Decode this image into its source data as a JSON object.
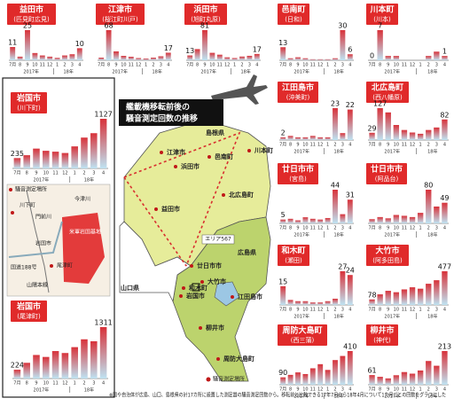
{
  "chart_data": [
    {
      "type": "bar",
      "title": "益田市",
      "subtitle": "(匹見町広見)",
      "categories": [
        "7月",
        "8",
        "9",
        "10",
        "11",
        "12",
        "1",
        "2",
        "3",
        "4"
      ],
      "x_groups": [
        "2017年",
        "18年"
      ],
      "values": [
        11,
        3,
        25,
        6,
        4,
        3,
        2,
        4,
        5,
        10
      ],
      "value_labels": [
        "11",
        null,
        "25",
        null,
        null,
        null,
        null,
        null,
        null,
        "10"
      ]
    },
    {
      "type": "bar",
      "title": "江津市",
      "subtitle": "(桜江町川戸)",
      "categories": [
        "7月",
        "8",
        "9",
        "10",
        "11",
        "12",
        "1",
        "2",
        "3",
        "4"
      ],
      "x_groups": [
        "2017年",
        "18年"
      ],
      "values": [
        6,
        68,
        20,
        10,
        8,
        5,
        4,
        6,
        9,
        17
      ],
      "value_labels": [
        null,
        "68",
        null,
        null,
        null,
        null,
        null,
        null,
        null,
        "17"
      ]
    },
    {
      "type": "bar",
      "title": "浜田市",
      "subtitle": "(旭町丸原)",
      "categories": [
        "7月",
        "8",
        "9",
        "10",
        "11",
        "12",
        "1",
        "2",
        "3",
        "4"
      ],
      "x_groups": [
        "2017年",
        "18年"
      ],
      "values": [
        13,
        30,
        81,
        20,
        15,
        8,
        6,
        10,
        12,
        17
      ],
      "value_labels": [
        "13",
        null,
        "81",
        null,
        null,
        null,
        null,
        null,
        null,
        "17"
      ]
    },
    {
      "type": "bar",
      "title": "邑南町",
      "subtitle": "(日和)",
      "categories": [
        "7月",
        "8",
        "9",
        "10",
        "11",
        "12",
        "1",
        "2",
        "3",
        "4"
      ],
      "x_groups": [
        "2017年",
        "18年"
      ],
      "values": [
        13,
        2,
        3,
        2,
        1,
        1,
        1,
        2,
        30,
        6
      ],
      "value_labels": [
        "13",
        null,
        null,
        null,
        null,
        null,
        null,
        null,
        "30",
        "6"
      ]
    },
    {
      "type": "bar",
      "title": "川本町",
      "subtitle": "(川本)",
      "categories": [
        "7月",
        "8",
        "9",
        "10",
        "11",
        "12",
        "1",
        "2",
        "3",
        "4"
      ],
      "x_groups": [
        "2017年",
        "18年"
      ],
      "values": [
        0,
        7,
        1,
        1,
        0,
        0,
        0,
        1,
        2,
        1
      ],
      "value_labels": [
        "0",
        "7",
        null,
        null,
        null,
        null,
        null,
        null,
        null,
        "1"
      ]
    },
    {
      "type": "bar",
      "title": "岩国市",
      "subtitle": "(川下町)",
      "categories": [
        "7月",
        "8",
        "9",
        "10",
        "11",
        "12",
        "1",
        "2",
        "3",
        "4"
      ],
      "x_groups": [
        "2017年",
        "18年"
      ],
      "values": [
        235,
        300,
        450,
        400,
        380,
        350,
        500,
        700,
        800,
        1127
      ],
      "value_labels": [
        "235",
        null,
        null,
        null,
        null,
        null,
        null,
        null,
        null,
        "1127"
      ]
    },
    {
      "type": "bar",
      "title": "岩国市",
      "subtitle": "(尾津町)",
      "categories": [
        "7月",
        "8",
        "9",
        "10",
        "11",
        "12",
        "1",
        "2",
        "3",
        "4"
      ],
      "x_groups": [
        "2017年",
        "18年"
      ],
      "values": [
        224,
        400,
        600,
        550,
        700,
        650,
        800,
        1000,
        950,
        1311
      ],
      "value_labels": [
        "224",
        null,
        null,
        null,
        null,
        null,
        null,
        null,
        null,
        "1311"
      ]
    },
    {
      "type": "bar",
      "title": "江田島市",
      "subtitle": "(沖美町)",
      "categories": [
        "7月",
        "8",
        "9",
        "10",
        "11",
        "12",
        "1",
        "2",
        "3",
        "4"
      ],
      "x_groups": [
        "2017年",
        "18年"
      ],
      "values": [
        2,
        3,
        2,
        2,
        3,
        2,
        2,
        23,
        5,
        22
      ],
      "value_labels": [
        "2",
        null,
        null,
        null,
        null,
        null,
        null,
        "23",
        null,
        "22"
      ]
    },
    {
      "type": "bar",
      "title": "北広島町",
      "subtitle": "(西八幡原)",
      "categories": [
        "7月",
        "8",
        "9",
        "10",
        "11",
        "12",
        "1",
        "2",
        "3",
        "4"
      ],
      "x_groups": [
        "2017年",
        "18年"
      ],
      "values": [
        29,
        127,
        110,
        60,
        40,
        30,
        25,
        40,
        50,
        82
      ],
      "value_labels": [
        "29",
        "127",
        null,
        null,
        null,
        null,
        null,
        null,
        null,
        "82"
      ]
    },
    {
      "type": "bar",
      "title": "廿日市市",
      "subtitle": "(宮島)",
      "categories": [
        "7月",
        "8",
        "9",
        "10",
        "11",
        "12",
        "1",
        "2",
        "3",
        "4"
      ],
      "x_groups": [
        "2017年",
        "18年"
      ],
      "values": [
        5,
        6,
        4,
        8,
        6,
        5,
        7,
        44,
        12,
        31
      ],
      "value_labels": [
        "5",
        null,
        null,
        null,
        null,
        null,
        null,
        "44",
        null,
        "31"
      ]
    },
    {
      "type": "bar",
      "title": "廿日市市",
      "subtitle": "(阿品台)",
      "categories": [
        "7月",
        "8",
        "9",
        "10",
        "11",
        "12",
        "1",
        "2",
        "3",
        "4"
      ],
      "x_groups": [
        "2017年",
        "18年"
      ],
      "values": [
        10,
        15,
        12,
        20,
        18,
        15,
        25,
        80,
        40,
        49
      ],
      "value_labels": [
        null,
        null,
        null,
        null,
        null,
        null,
        null,
        "80",
        null,
        "49"
      ]
    },
    {
      "type": "bar",
      "title": "和木町",
      "subtitle": "(瀬田)",
      "categories": [
        "7月",
        "8",
        "9",
        "10",
        "11",
        "12",
        "1",
        "2",
        "3",
        "4"
      ],
      "x_groups": [
        "2017年",
        "18年"
      ],
      "values": [
        15,
        4,
        3,
        3,
        2,
        2,
        3,
        5,
        27,
        24
      ],
      "value_labels": [
        "15",
        null,
        null,
        null,
        null,
        null,
        null,
        null,
        "27",
        "24"
      ]
    },
    {
      "type": "bar",
      "title": "大竹市",
      "subtitle": "(阿多田島)",
      "categories": [
        "7月",
        "8",
        "9",
        "10",
        "11",
        "12",
        "1",
        "2",
        "3",
        "4"
      ],
      "x_groups": [
        "2017年",
        "18年"
      ],
      "values": [
        78,
        150,
        200,
        180,
        220,
        250,
        230,
        300,
        350,
        477
      ],
      "value_labels": [
        "78",
        null,
        null,
        null,
        null,
        null,
        null,
        null,
        null,
        "477"
      ]
    },
    {
      "type": "bar",
      "title": "周防大島町",
      "subtitle": "(西三蒲)",
      "categories": [
        "7月",
        "8",
        "9",
        "10",
        "11",
        "12",
        "1",
        "2",
        "3",
        "4"
      ],
      "x_groups": [
        "2017年",
        "18年"
      ],
      "values": [
        90,
        120,
        150,
        130,
        200,
        250,
        180,
        300,
        350,
        410
      ],
      "value_labels": [
        "90",
        null,
        null,
        null,
        null,
        null,
        null,
        null,
        null,
        "410"
      ]
    },
    {
      "type": "bar",
      "title": "柳井市",
      "subtitle": "(神代)",
      "categories": [
        "7月",
        "8",
        "9",
        "10",
        "11",
        "12",
        "1",
        "2",
        "3",
        "4"
      ],
      "x_groups": [
        "2017年",
        "18年"
      ],
      "values": [
        61,
        50,
        40,
        60,
        80,
        70,
        90,
        150,
        120,
        213
      ],
      "value_labels": [
        "61",
        null,
        null,
        null,
        null,
        null,
        null,
        null,
        null,
        "213"
      ]
    }
  ],
  "map": {
    "title": [
      "艦載機移転前後の",
      "騒音測定回数の推移"
    ],
    "labels": [
      "島根県",
      "川本町",
      "江津市",
      "邑南町",
      "浜田市",
      "益田市",
      "北広島町",
      "広島県",
      "山口県",
      "廿日市市",
      "和木町",
      "大竹市",
      "岩国市",
      "江田島市",
      "柳井市",
      "周防大島町"
    ],
    "area": "エリア567",
    "legend": "騒音測定場所"
  },
  "inset": {
    "labels": [
      "岩国市",
      "米軍岩国基地",
      "川下町",
      "尾津町",
      "国道188号",
      "山陽本線",
      "今津川",
      "門前川"
    ],
    "legend": "騒音測定場所"
  },
  "note": "※国や自治体が広島、山口、島根県の計17カ所に設置した測定器の騒音測定回数から。移転前と比較できる17年7月から18年4月について1カ月ごとの回数をグラフにした"
}
